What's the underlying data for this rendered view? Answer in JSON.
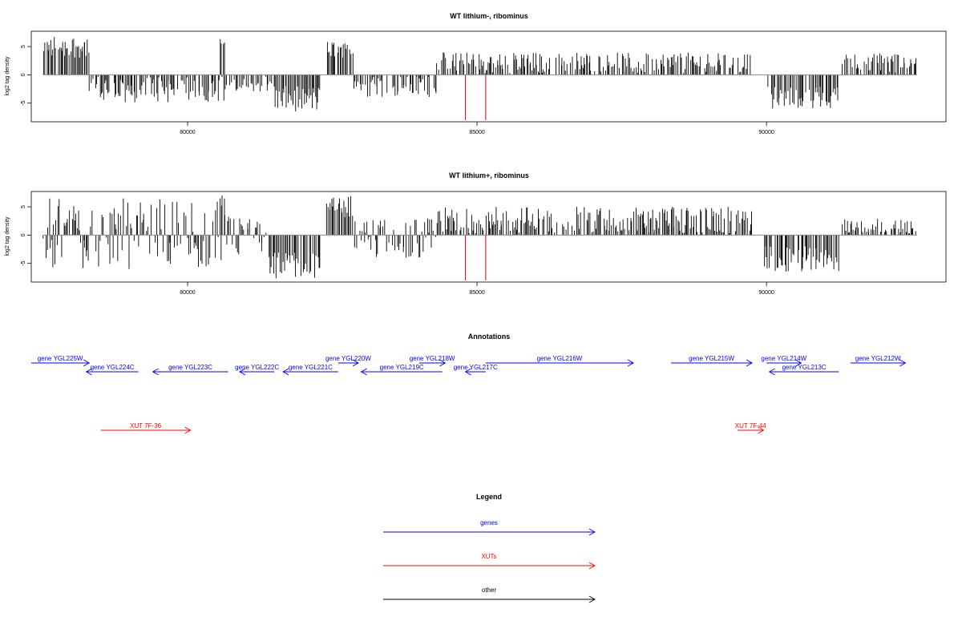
{
  "chart_data": [
    {
      "type": "bar",
      "title": "WT lithium-, ribominus",
      "ylabel": "log2 tag density",
      "xlim": [
        77300,
        93100
      ],
      "ylim": [
        -8.3,
        7.7
      ],
      "x_ticks": [
        80000,
        85000,
        90000
      ],
      "y_ticks": [
        5,
        0,
        -5
      ],
      "grid": false,
      "legend": "none",
      "regions": [
        {
          "start": 77500,
          "end": 78300,
          "min": 3,
          "max": 7
        },
        {
          "start": 78300,
          "end": 80700,
          "min": -5,
          "max": 0
        },
        {
          "start": 80550,
          "end": 80650,
          "min": 5,
          "max": 6.5
        },
        {
          "start": 80700,
          "end": 81500,
          "min": -3,
          "max": 0
        },
        {
          "start": 81500,
          "end": 82300,
          "min": -6.5,
          "max": -2
        },
        {
          "start": 82400,
          "end": 82850,
          "min": 3,
          "max": 6
        },
        {
          "start": 82850,
          "end": 84300,
          "min": -4,
          "max": 0
        },
        {
          "start": 84300,
          "end": 89750,
          "min": 0,
          "max": 4
        },
        {
          "start": 89950,
          "end": 91250,
          "min": -6,
          "max": -2
        },
        {
          "start": 91300,
          "end": 92600,
          "min": 0,
          "max": 4
        }
      ],
      "marker_lines": [
        {
          "x": 84800,
          "y": -8
        },
        {
          "x": 85150,
          "y": -8
        }
      ],
      "colors": {
        "bars": "#000000",
        "markers": "#cc0000",
        "baseline": "#888888"
      }
    },
    {
      "type": "bar",
      "title": "WT lithium+, ribominus",
      "ylabel": "log2 tag density",
      "xlim": [
        77300,
        93100
      ],
      "ylim": [
        -8.3,
        7.7
      ],
      "x_ticks": [
        80000,
        85000,
        90000
      ],
      "y_ticks": [
        5,
        0,
        -5
      ],
      "grid": false,
      "legend": "none",
      "regions": [
        {
          "start": 77500,
          "end": 80800,
          "min": -6,
          "max": 6.5
        },
        {
          "start": 80550,
          "end": 80650,
          "min": 5,
          "max": 7.5
        },
        {
          "start": 80800,
          "end": 81400,
          "min": -4,
          "max": 3
        },
        {
          "start": 81400,
          "end": 82300,
          "min": -8,
          "max": -3
        },
        {
          "start": 82400,
          "end": 82850,
          "min": 3,
          "max": 7
        },
        {
          "start": 82850,
          "end": 84300,
          "min": -4,
          "max": 3
        },
        {
          "start": 84300,
          "end": 89750,
          "min": 0,
          "max": 5
        },
        {
          "start": 89950,
          "end": 91250,
          "min": -7,
          "max": -2
        },
        {
          "start": 91300,
          "end": 92600,
          "min": 0,
          "max": 3
        }
      ],
      "marker_lines": [
        {
          "x": 84800,
          "y": -8
        },
        {
          "x": 85150,
          "y": -8
        }
      ],
      "colors": {
        "bars": "#000000",
        "markers": "#cc0000",
        "baseline": "#888888"
      }
    },
    {
      "type": "annotation-track",
      "title": "Annotations",
      "xlim": [
        77300,
        93100
      ],
      "features": [
        {
          "label": "gene YGL225W",
          "start": 76800,
          "end": 78300,
          "strand": "+",
          "type": "gene",
          "row": 0
        },
        {
          "label": "gene YGL224C",
          "start": 78250,
          "end": 79150,
          "strand": "-",
          "type": "gene",
          "row": 1
        },
        {
          "label": "gene YGL223C",
          "start": 79400,
          "end": 80700,
          "strand": "-",
          "type": "gene",
          "row": 1
        },
        {
          "label": "gene YGL222C",
          "start": 80900,
          "end": 81500,
          "strand": "-",
          "type": "gene",
          "row": 1
        },
        {
          "label": "gene YGL221C",
          "start": 81650,
          "end": 82600,
          "strand": "-",
          "type": "gene",
          "row": 1
        },
        {
          "label": "gene YGL220W",
          "start": 82600,
          "end": 82950,
          "strand": "+",
          "type": "gene",
          "row": 0
        },
        {
          "label": "gene YGL219C",
          "start": 83000,
          "end": 84400,
          "strand": "-",
          "type": "gene",
          "row": 1
        },
        {
          "label": "gene YGL218W",
          "start": 84000,
          "end": 84450,
          "strand": "+",
          "type": "gene",
          "row": 0
        },
        {
          "label": "gene YGL217C",
          "start": 84800,
          "end": 85150,
          "strand": "-",
          "type": "gene",
          "row": 1
        },
        {
          "label": "gene YGL216W",
          "start": 85150,
          "end": 87700,
          "strand": "+",
          "type": "gene",
          "row": 0
        },
        {
          "label": "gene YGL215W",
          "start": 88350,
          "end": 89750,
          "strand": "+",
          "type": "gene",
          "row": 0
        },
        {
          "label": "gene YGL214W",
          "start": 90000,
          "end": 90600,
          "strand": "+",
          "type": "gene",
          "row": 0
        },
        {
          "label": "gene YGL213C",
          "start": 90050,
          "end": 91250,
          "strand": "-",
          "type": "gene",
          "row": 1
        },
        {
          "label": "gene YGL212W",
          "start": 91450,
          "end": 92400,
          "strand": "+",
          "type": "gene",
          "row": 0
        },
        {
          "label": "XUT 7F-36",
          "start": 78500,
          "end": 80050,
          "strand": "+",
          "type": "xut",
          "row": 2
        },
        {
          "label": "XUT 7F-44",
          "start": 89500,
          "end": 89950,
          "strand": "+",
          "type": "xut",
          "row": 2
        }
      ]
    },
    {
      "type": "legend",
      "title": "Legend",
      "entries": [
        {
          "label": "genes",
          "color": "#0000ff"
        },
        {
          "label": "XUTs",
          "color": "#ff0000"
        },
        {
          "label": "other",
          "color": "#000000"
        }
      ]
    }
  ]
}
